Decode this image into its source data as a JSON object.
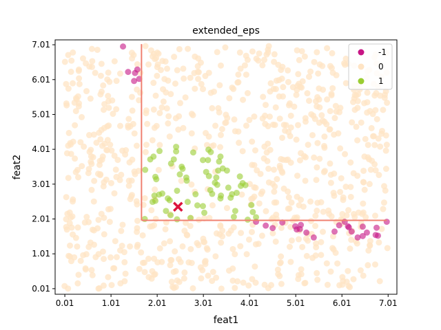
{
  "chart_data": {
    "type": "scatter",
    "title": "extended_eps",
    "xlabel": "feat1",
    "ylabel": "feat2",
    "xlim": [
      -0.2,
      7.2
    ],
    "ylim": [
      -0.15,
      7.15
    ],
    "xticks": [
      0.01,
      1.01,
      2.01,
      3.01,
      4.01,
      5.01,
      6.01,
      7.01
    ],
    "yticks": [
      0.01,
      1.01,
      2.01,
      3.01,
      4.01,
      5.01,
      6.01,
      7.01
    ],
    "xtick_labels": [
      "0.01",
      "1.01",
      "2.01",
      "3.01",
      "4.01",
      "5.01",
      "6.01",
      "7.01"
    ],
    "ytick_labels": [
      "0.01",
      "1.01",
      "2.01",
      "3.01",
      "4.01",
      "5.01",
      "6.01",
      "7.01"
    ],
    "legend": {
      "position": "top-right",
      "entries": [
        "-1",
        "0",
        "1"
      ]
    },
    "colors": {
      "-1": "#c71585",
      "0": "#ffe4c4",
      "1": "#9acd32",
      "boundary": "#f08070",
      "marker": "#dc143c"
    },
    "background_class": "0",
    "background_count": 850,
    "background_range": {
      "x": [
        0.0,
        7.0
      ],
      "y": [
        0.0,
        7.0
      ]
    },
    "series": [
      {
        "name": "-1",
        "points": [
          [
            1.27,
            6.96
          ],
          [
            1.38,
            6.23
          ],
          [
            1.53,
            6.2
          ],
          [
            1.58,
            6.3
          ],
          [
            1.51,
            5.97
          ],
          [
            1.62,
            6.03
          ],
          [
            4.15,
            1.93
          ],
          [
            4.36,
            1.82
          ],
          [
            4.51,
            1.75
          ],
          [
            4.72,
            1.91
          ],
          [
            5.0,
            1.8
          ],
          [
            5.03,
            1.71
          ],
          [
            5.12,
            1.84
          ],
          [
            5.1,
            1.72
          ],
          [
            5.24,
            1.62
          ],
          [
            5.4,
            1.48
          ],
          [
            5.85,
            1.65
          ],
          [
            5.95,
            1.83
          ],
          [
            6.07,
            1.93
          ],
          [
            6.14,
            1.8
          ],
          [
            6.16,
            1.77
          ],
          [
            6.22,
            1.65
          ],
          [
            6.35,
            1.48
          ],
          [
            6.46,
            1.79
          ],
          [
            6.46,
            1.52
          ],
          [
            6.55,
            1.62
          ],
          [
            6.76,
            1.76
          ],
          [
            6.74,
            1.55
          ],
          [
            6.79,
            1.53
          ],
          [
            6.98,
            1.93
          ]
        ]
      },
      {
        "name": "1",
        "points": [
          [
            1.74,
            2.01
          ],
          [
            1.75,
            3.42
          ],
          [
            1.86,
            3.72
          ],
          [
            1.93,
            3.8
          ],
          [
            1.97,
            3.22
          ],
          [
            1.99,
            3.15
          ],
          [
            1.91,
            2.5
          ],
          [
            1.95,
            2.68
          ],
          [
            1.97,
            2.53
          ],
          [
            2.05,
            2.71
          ],
          [
            2.12,
            2.74
          ],
          [
            2.06,
            3.96
          ],
          [
            2.2,
            2.24
          ],
          [
            2.24,
            2.6
          ],
          [
            2.28,
            2.55
          ],
          [
            2.3,
            2.12
          ],
          [
            2.31,
            3.6
          ],
          [
            2.37,
            3.72
          ],
          [
            2.42,
            4.08
          ],
          [
            2.42,
            3.95
          ],
          [
            2.44,
            2.82
          ],
          [
            2.44,
            2.0
          ],
          [
            2.5,
            3.29
          ],
          [
            2.54,
            3.51
          ],
          [
            2.56,
            3.45
          ],
          [
            2.64,
            3.2
          ],
          [
            2.65,
            3.11
          ],
          [
            2.67,
            2.5
          ],
          [
            2.73,
            2.04
          ],
          [
            2.79,
            3.92
          ],
          [
            2.84,
            2.72
          ],
          [
            2.88,
            2.4
          ],
          [
            3.0,
            2.38
          ],
          [
            3.03,
            2.19
          ],
          [
            3.07,
            3.36
          ],
          [
            3.11,
            3.7
          ],
          [
            3.12,
            4.0
          ],
          [
            3.13,
            3.24
          ],
          [
            3.16,
            2.84
          ],
          [
            3.17,
            3.93
          ],
          [
            3.2,
            2.73
          ],
          [
            3.26,
            3.05
          ],
          [
            3.29,
            3.2
          ],
          [
            3.31,
            2.99
          ],
          [
            3.33,
            3.4
          ],
          [
            3.35,
            3.66
          ],
          [
            3.38,
            3.8
          ],
          [
            3.38,
            2.6
          ],
          [
            3.39,
            2.68
          ],
          [
            3.43,
            3.46
          ],
          [
            3.52,
            3.4
          ],
          [
            3.55,
            2.91
          ],
          [
            3.6,
            2.62
          ],
          [
            3.63,
            2.72
          ],
          [
            3.7,
            2.24
          ],
          [
            3.73,
            2.76
          ],
          [
            3.8,
            3.23
          ],
          [
            3.82,
            2.96
          ],
          [
            3.86,
            3.04
          ],
          [
            3.92,
            2.98
          ],
          [
            3.97,
            1.99
          ],
          [
            4.05,
            2.41
          ],
          [
            4.08,
            2.21
          ],
          [
            4.15,
            2.06
          ],
          [
            3.67,
            2.07
          ],
          [
            3.0,
            3.7
          ]
        ]
      }
    ],
    "boundary_lines": [
      {
        "x": [
          1.67,
          1.67
        ],
        "y": [
          1.97,
          7.03
        ]
      },
      {
        "x": [
          1.67,
          6.98
        ],
        "y": [
          1.97,
          1.97
        ]
      }
    ],
    "highlight_point": {
      "x": 2.46,
      "y": 2.36,
      "marker": "x"
    }
  }
}
